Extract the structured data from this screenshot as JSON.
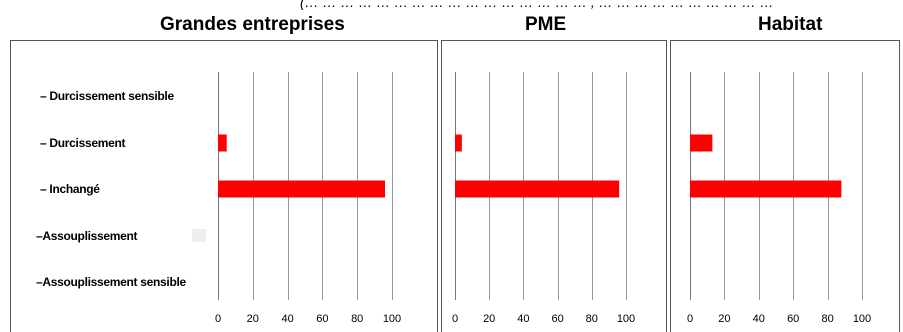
{
  "top_note": "(… … … … … … … … … … … … … … … … , … … … … … … … … … …",
  "chart_data": [
    {
      "type": "bar",
      "orientation": "horizontal",
      "title": "Grandes entreprises",
      "categories": [
        "– Durcissement sensible",
        "– Durcissement",
        "– Inchangé",
        "–Assouplissement",
        "–Assouplissement sensible"
      ],
      "values": [
        0,
        5,
        96,
        0,
        0
      ],
      "xlim": [
        0,
        100
      ],
      "xticks": [
        "0",
        "20",
        "40",
        "60",
        "80",
        "100"
      ],
      "grid": "vertical",
      "color": "#ff0000"
    },
    {
      "type": "bar",
      "orientation": "horizontal",
      "title": "PME",
      "categories": [
        "– Durcissement sensible",
        "– Durcissement",
        "– Inchangé",
        "–Assouplissement",
        "–Assouplissement sensible"
      ],
      "values": [
        0,
        4,
        96,
        0,
        0
      ],
      "xlim": [
        0,
        100
      ],
      "xticks": [
        "0",
        "20",
        "40",
        "60",
        "80",
        "100"
      ],
      "grid": "vertical",
      "color": "#ff0000"
    },
    {
      "type": "bar",
      "orientation": "horizontal",
      "title": "Habitat",
      "categories": [
        "– Durcissement sensible",
        "– Durcissement",
        "– Inchangé",
        "–Assouplissement",
        "–Assouplissement sensible"
      ],
      "values": [
        0,
        13,
        88,
        0,
        0
      ],
      "xlim": [
        0,
        100
      ],
      "xticks": [
        "0",
        "20",
        "40",
        "60",
        "80",
        "100"
      ],
      "grid": "vertical",
      "color": "#ff0000"
    }
  ]
}
